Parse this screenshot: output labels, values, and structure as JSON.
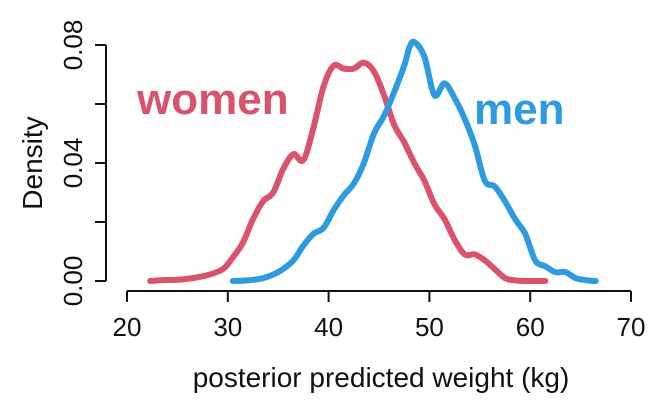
{
  "chart_data": {
    "type": "line",
    "xlabel": "posterior predicted weight (kg)",
    "ylabel": "Density",
    "xlim": [
      20,
      70
    ],
    "ylim": [
      0,
      0.08
    ],
    "x_ticks": [
      20,
      30,
      40,
      50,
      60,
      70
    ],
    "x_tick_labels": [
      "20",
      "30",
      "40",
      "50",
      "60",
      "70"
    ],
    "y_ticks": [
      0,
      0.02,
      0.04,
      0.06,
      0.08
    ],
    "y_tick_labels": [
      "0.00",
      "",
      "0.04",
      "",
      "0.08"
    ],
    "grid": false,
    "legend": "inline labels",
    "series": [
      {
        "name": "women",
        "color": "#d9536c",
        "x": [
          22.3,
          23.5,
          25,
          26.5,
          28,
          29.5,
          30.5,
          31.5,
          32.5,
          33.5,
          34.5,
          35.5,
          36.5,
          37.5,
          38.5,
          39.5,
          40.5,
          41.5,
          42.5,
          43.5,
          44.5,
          45.5,
          46.5,
          47.5,
          48.5,
          49.5,
          50.5,
          51.5,
          52.5,
          53.5,
          54.5,
          55.5,
          56.5,
          57.5,
          58.5,
          59.5,
          61.5
        ],
        "values": [
          0.0,
          0.0003,
          0.0004,
          0.001,
          0.002,
          0.004,
          0.008,
          0.013,
          0.021,
          0.027,
          0.03,
          0.038,
          0.043,
          0.041,
          0.052,
          0.066,
          0.073,
          0.072,
          0.072,
          0.074,
          0.071,
          0.063,
          0.053,
          0.047,
          0.04,
          0.034,
          0.026,
          0.021,
          0.014,
          0.009,
          0.009,
          0.007,
          0.004,
          0.001,
          0.0002,
          0.0,
          0.0
        ]
      },
      {
        "name": "men",
        "color": "#2e9ae0",
        "x": [
          30.5,
          32,
          33.5,
          35,
          36.5,
          37.5,
          38.5,
          39.5,
          40.5,
          41.5,
          42.5,
          43.5,
          44.5,
          45.5,
          46.5,
          47.5,
          48,
          48.5,
          49.5,
          50.5,
          51.5,
          52.5,
          53.5,
          54.5,
          55.5,
          56.5,
          57.5,
          58.5,
          59.5,
          60.5,
          61.5,
          62.5,
          63.5,
          64.5,
          65.5,
          66.5
        ],
        "values": [
          0.0,
          0.0002,
          0.001,
          0.003,
          0.007,
          0.012,
          0.016,
          0.018,
          0.024,
          0.029,
          0.033,
          0.04,
          0.05,
          0.056,
          0.064,
          0.073,
          0.079,
          0.081,
          0.076,
          0.063,
          0.067,
          0.062,
          0.055,
          0.046,
          0.034,
          0.032,
          0.027,
          0.021,
          0.016,
          0.007,
          0.005,
          0.003,
          0.003,
          0.001,
          0.0003,
          0.0
        ]
      }
    ]
  }
}
